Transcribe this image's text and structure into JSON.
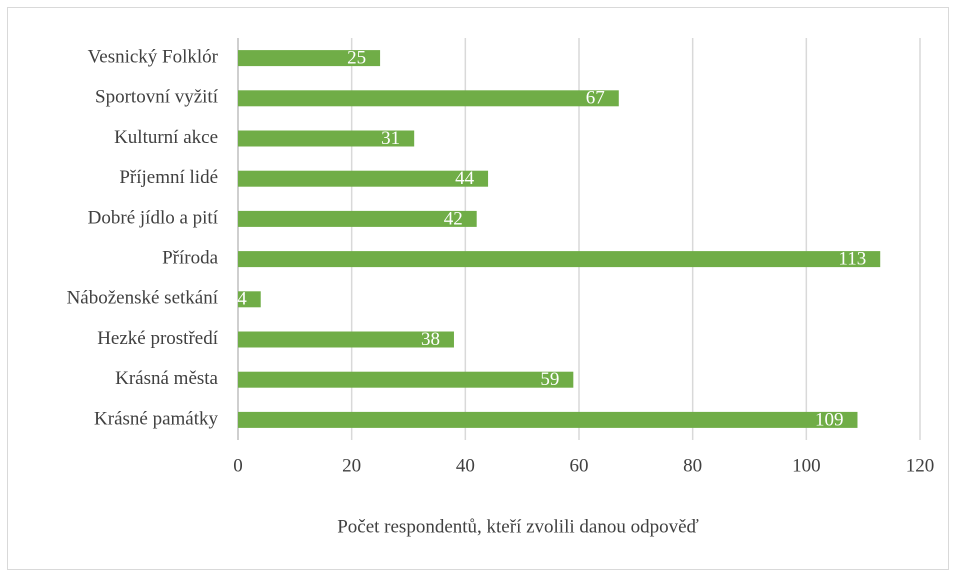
{
  "chart_data": {
    "type": "hbar",
    "x_label": "Počet respondentů, kteří zvolili danou odpověď",
    "categories": [
      "Vesnický Folklór",
      "Sportovní vyžití",
      "Kulturní akce",
      "Příjemní lidé",
      "Dobré jídlo a pití",
      "Příroda",
      "Náboženské setkání",
      "Hezké prostředí",
      "Krásná města",
      "Krásné památky"
    ],
    "values": [
      25,
      67,
      31,
      44,
      42,
      113,
      4,
      38,
      59,
      109
    ],
    "color": "#70ad47",
    "xlim": [
      0,
      120
    ],
    "xticks": [
      0,
      20,
      40,
      60,
      80,
      100,
      120
    ],
    "grid": true
  }
}
